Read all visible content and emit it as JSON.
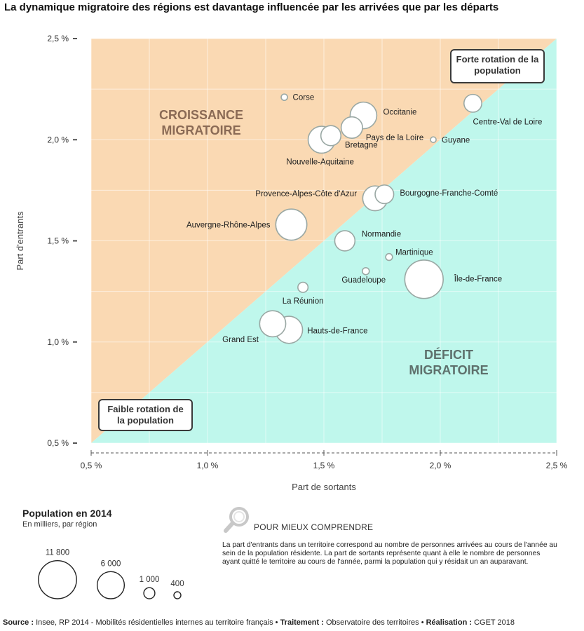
{
  "title": "La dynamique migratoire des régions est davantage influencée par les arrivées que par les départs",
  "chart_data": {
    "type": "scatter",
    "xlabel": "Part de sortants",
    "ylabel": "Part d'entrants",
    "xlim": [
      0.5,
      2.5
    ],
    "ylim": [
      0.5,
      2.5
    ],
    "x_ticks": [
      "0,5 %",
      "1,0 %",
      "1,5 %",
      "2,0 %",
      "2,5 %"
    ],
    "y_ticks": [
      "0,5 %",
      "1,0 %",
      "1,5 %",
      "2,0 %",
      "2,5 %"
    ],
    "grid": true,
    "zones": {
      "upper": {
        "label_lines": [
          "CROISSANCE",
          "MIGRATOIRE"
        ],
        "color": "#fad9b3",
        "text_color": "#8a6a55"
      },
      "lower": {
        "label_lines": [
          "DÉFICIT",
          "MIGRATOIRE"
        ],
        "color": "#bff7ec",
        "text_color": "#5e706c"
      }
    },
    "annotations": [
      {
        "lines": [
          "Forte rotation de la",
          "population"
        ],
        "corner": "top-right"
      },
      {
        "lines": [
          "Faible rotation de",
          "la population"
        ],
        "corner": "bottom-left"
      }
    ],
    "points": [
      {
        "name": "Corse",
        "x": 1.33,
        "y": 2.21,
        "pop": 330
      },
      {
        "name": "Occitanie",
        "x": 1.67,
        "y": 2.12,
        "pop": 5775
      },
      {
        "name": "Pays de la Loire",
        "x": 1.62,
        "y": 2.06,
        "pop": 3718
      },
      {
        "name": "Bretagne",
        "x": 1.53,
        "y": 2.02,
        "pop": 3274
      },
      {
        "name": "Nouvelle-Aquitaine",
        "x": 1.49,
        "y": 2.0,
        "pop": 5880
      },
      {
        "name": "Guyane",
        "x": 1.97,
        "y": 2.0,
        "pop": 260
      },
      {
        "name": "Centre-Val de Loire",
        "x": 2.14,
        "y": 2.18,
        "pop": 2577
      },
      {
        "name": "Bourgogne-Franche-Comté",
        "x": 1.76,
        "y": 1.73,
        "pop": 2820
      },
      {
        "name": "Provence-Alpes-Côte d'Azur",
        "x": 1.72,
        "y": 1.71,
        "pop": 5008
      },
      {
        "name": "Auvergne-Rhône-Alpes",
        "x": 1.36,
        "y": 1.58,
        "pop": 7877
      },
      {
        "name": "Normandie",
        "x": 1.59,
        "y": 1.5,
        "pop": 3335
      },
      {
        "name": "Martinique",
        "x": 1.78,
        "y": 1.42,
        "pop": 380
      },
      {
        "name": "Guadeloupe",
        "x": 1.68,
        "y": 1.35,
        "pop": 400
      },
      {
        "name": "Île-de-France",
        "x": 1.93,
        "y": 1.31,
        "pop": 12027
      },
      {
        "name": "La Réunion",
        "x": 1.41,
        "y": 1.27,
        "pop": 843
      },
      {
        "name": "Grand Est",
        "x": 1.28,
        "y": 1.09,
        "pop": 5554
      },
      {
        "name": "Hauts-de-France",
        "x": 1.35,
        "y": 1.06,
        "pop": 5987
      }
    ]
  },
  "legend": {
    "title": "Population en 2014",
    "subtitle": "En milliers, par région",
    "items": [
      {
        "label": "11 800",
        "value": 11800
      },
      {
        "label": "6 000",
        "value": 6000
      },
      {
        "label": "1 000",
        "value": 1000
      },
      {
        "label": "400",
        "value": 400
      }
    ]
  },
  "info": {
    "icon": "magnifier-icon",
    "title": "POUR MIEUX COMPRENDRE",
    "text": "La part d'entrants dans un territoire correspond au nombre de personnes arrivées au cours de l'année au sein de la population résidente. La part de sortants représente quant à elle le nombre de personnes ayant quitté le territoire au cours de l'année, parmi la population qui y résidait un an auparavant."
  },
  "source": {
    "source_label": "Source :",
    "source_text": " Insee, RP 2014 - Mobilités résidentielles internes au territoire français • ",
    "traitement_label": "Traitement :",
    "traitement_text": " Observatoire des territoires • ",
    "realisation_label": "Réalisation :",
    "realisation_text": " CGET 2018"
  }
}
